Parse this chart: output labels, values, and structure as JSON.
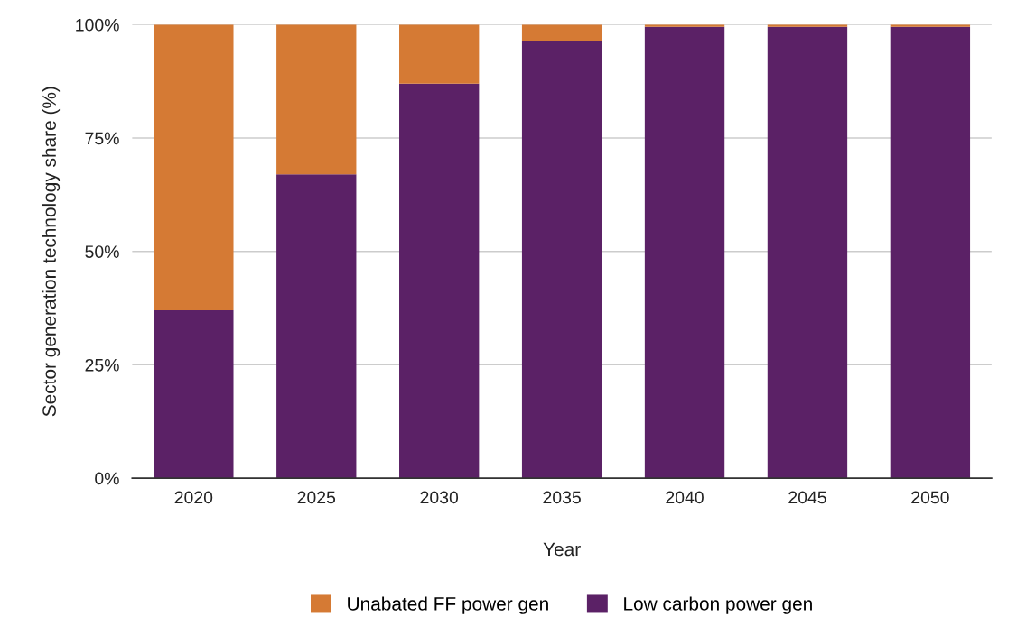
{
  "chart_data": {
    "type": "bar",
    "stacked": true,
    "xlabel": "Year",
    "ylabel": "Sector generation technology share (%)",
    "categories": [
      "2020",
      "2025",
      "2030",
      "2035",
      "2040",
      "2045",
      "2050"
    ],
    "series": [
      {
        "name": "Low carbon power gen",
        "color": "#5b2166",
        "values": [
          37,
          67,
          87,
          96.5,
          99.5,
          99.5,
          99.5
        ]
      },
      {
        "name": "Unabated FF power gen",
        "color": "#d57a34",
        "values": [
          63,
          33,
          13,
          3.5,
          0.5,
          0.5,
          0.5
        ]
      }
    ],
    "ylim": [
      0,
      100
    ],
    "yticks": [
      {
        "value": 0,
        "label": "0%"
      },
      {
        "value": 25,
        "label": "25%"
      },
      {
        "value": 50,
        "label": "50%"
      },
      {
        "value": 75,
        "label": "75%"
      },
      {
        "value": 100,
        "label": "100%"
      }
    ],
    "grid": "y",
    "legend": "bottom"
  }
}
